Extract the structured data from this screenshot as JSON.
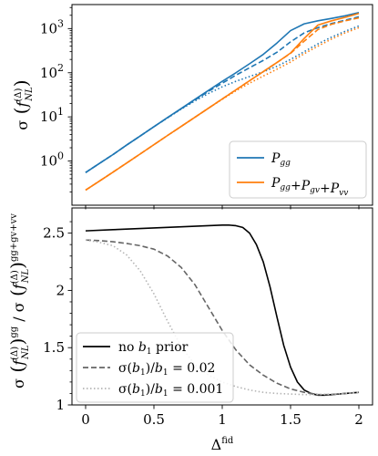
{
  "chart_data": [
    {
      "type": "line",
      "title": "",
      "xlabel": "",
      "ylabel_parts": {
        "sigma": "σ",
        "f": "f",
        "sub": "NL",
        "sup": "(Δ)"
      },
      "ylog": true,
      "ylim": [
        0.1,
        3500
      ],
      "xlim": [
        -0.1,
        2.1
      ],
      "grid": false,
      "yticks": [
        {
          "value": 1,
          "base": "10",
          "exp": "0"
        },
        {
          "value": 10,
          "base": "10",
          "exp": "1"
        },
        {
          "value": 100,
          "base": "10",
          "exp": "2"
        },
        {
          "value": 1000,
          "base": "10",
          "exp": "3"
        }
      ],
      "legend": {
        "placement": "lower-right",
        "entries": [
          {
            "key": "gg",
            "parts": [
              [
                "P",
                "gg"
              ]
            ]
          },
          {
            "key": "all",
            "parts": [
              [
                "P",
                "gg"
              ],
              "+",
              [
                "P",
                "gv"
              ],
              "+",
              [
                "P",
                "vv"
              ]
            ]
          }
        ]
      },
      "x": [
        0,
        0.1,
        0.2,
        0.3,
        0.4,
        0.5,
        0.6,
        0.7,
        0.8,
        0.9,
        1.0,
        1.1,
        1.2,
        1.3,
        1.4,
        1.5,
        1.6,
        1.7,
        1.8,
        1.9,
        2.0
      ],
      "series": [
        {
          "group": "gg",
          "style": "solid",
          "color": "#1f77b4",
          "values": [
            0.55,
            0.88,
            1.4,
            2.3,
            3.7,
            6.0,
            9.7,
            15.5,
            25,
            40,
            64,
            100,
            160,
            260,
            470,
            900,
            1280,
            1500,
            1700,
            1950,
            2300
          ]
        },
        {
          "group": "gg",
          "style": "dashed",
          "color": "#1f77b4",
          "values": [
            0.55,
            0.88,
            1.4,
            2.3,
            3.7,
            6.0,
            9.6,
            15.3,
            24,
            38,
            58,
            88,
            130,
            190,
            290,
            500,
            800,
            1050,
            1300,
            1550,
            1850
          ]
        },
        {
          "group": "gg",
          "style": "dotted",
          "color": "#1f77b4",
          "values": [
            0.55,
            0.88,
            1.4,
            2.3,
            3.7,
            6.0,
            9.5,
            15,
            23,
            34,
            48,
            64,
            82,
            105,
            140,
            200,
            300,
            450,
            640,
            870,
            1150
          ]
        },
        {
          "group": "all",
          "style": "solid",
          "color": "#ff7f0e",
          "values": [
            0.22,
            0.35,
            0.56,
            0.9,
            1.45,
            2.35,
            3.8,
            6.1,
            9.8,
            15.8,
            25.5,
            41,
            66,
            106,
            170,
            280,
            600,
            1200,
            1500,
            1800,
            2200
          ]
        },
        {
          "group": "all",
          "style": "dashed",
          "color": "#ff7f0e",
          "values": [
            0.22,
            0.35,
            0.56,
            0.9,
            1.45,
            2.35,
            3.8,
            6.1,
            9.8,
            15.8,
            25.5,
            41,
            66,
            106,
            170,
            275,
            520,
            950,
            1250,
            1500,
            1750
          ]
        },
        {
          "group": "all",
          "style": "dotted",
          "color": "#ff7f0e",
          "values": [
            0.22,
            0.35,
            0.56,
            0.9,
            1.45,
            2.35,
            3.8,
            6.1,
            9.8,
            15.8,
            25,
            39,
            58,
            84,
            120,
            175,
            270,
            400,
            580,
            800,
            1050
          ]
        }
      ]
    },
    {
      "type": "line",
      "title": "",
      "xlabel_parts": {
        "main": "Δ",
        "sup": "fid"
      },
      "ylabel_parts": {
        "sigma": "σ",
        "f": "f",
        "sub": "NL",
        "sup": "(Δ)",
        "num_sup": "gg",
        "den_sup": "gg+gv+vv"
      },
      "ylim": [
        1,
        2.72
      ],
      "xlim": [
        -0.1,
        2.1
      ],
      "grid": false,
      "xticks": [
        "0",
        "0.5",
        "1",
        "1.5",
        "2"
      ],
      "yticks": [
        "1",
        "1.5",
        "2",
        "2.5"
      ],
      "legend": {
        "placement": "lower-left",
        "entries": [
          {
            "key": "none",
            "text": "no ",
            "sym": "b",
            "sub": "1",
            "tail": " prior"
          },
          {
            "key": "p02",
            "text": "σ(",
            "sym": "b",
            "sub": "1",
            "tail": ")/",
            "sym2": "b",
            "sub2": "1",
            "tail2": " = 0.02"
          },
          {
            "key": "p001",
            "text": "σ(",
            "sym": "b",
            "sub": "1",
            "tail": ")/",
            "sym2": "b",
            "sub2": "1",
            "tail2": " = 0.001"
          }
        ]
      },
      "series": [
        {
          "key": "none",
          "style": "solid",
          "color": "#000000",
          "x": [
            0,
            0.2,
            0.4,
            0.6,
            0.8,
            0.9,
            1.0,
            1.05,
            1.1,
            1.15,
            1.2,
            1.25,
            1.3,
            1.35,
            1.4,
            1.45,
            1.5,
            1.55,
            1.6,
            1.65,
            1.7,
            1.75,
            1.8,
            1.9,
            2.0
          ],
          "values": [
            2.52,
            2.53,
            2.54,
            2.55,
            2.56,
            2.565,
            2.57,
            2.57,
            2.565,
            2.55,
            2.5,
            2.4,
            2.25,
            2.03,
            1.77,
            1.52,
            1.33,
            1.2,
            1.13,
            1.1,
            1.085,
            1.085,
            1.09,
            1.1,
            1.11
          ]
        },
        {
          "key": "p02",
          "style": "dashed",
          "color": "#666666",
          "x": [
            0,
            0.1,
            0.2,
            0.3,
            0.4,
            0.5,
            0.6,
            0.7,
            0.8,
            0.9,
            1.0,
            1.1,
            1.2,
            1.3,
            1.4,
            1.5,
            1.6,
            1.7,
            1.8,
            1.9,
            2.0
          ],
          "values": [
            2.44,
            2.435,
            2.425,
            2.41,
            2.39,
            2.36,
            2.3,
            2.2,
            2.05,
            1.85,
            1.65,
            1.48,
            1.35,
            1.26,
            1.19,
            1.14,
            1.11,
            1.09,
            1.09,
            1.1,
            1.11
          ]
        },
        {
          "key": "p001",
          "style": "dotted",
          "color": "#b5b5b5",
          "x": [
            0,
            0.1,
            0.2,
            0.3,
            0.4,
            0.5,
            0.6,
            0.7,
            0.8,
            0.9,
            1.0,
            1.1,
            1.2,
            1.3,
            1.4,
            1.5,
            1.6,
            1.7,
            1.8,
            1.9,
            2.0
          ],
          "values": [
            2.44,
            2.42,
            2.39,
            2.31,
            2.17,
            1.97,
            1.73,
            1.51,
            1.35,
            1.26,
            1.2,
            1.16,
            1.13,
            1.11,
            1.1,
            1.095,
            1.09,
            1.09,
            1.095,
            1.1,
            1.11
          ]
        }
      ]
    }
  ]
}
